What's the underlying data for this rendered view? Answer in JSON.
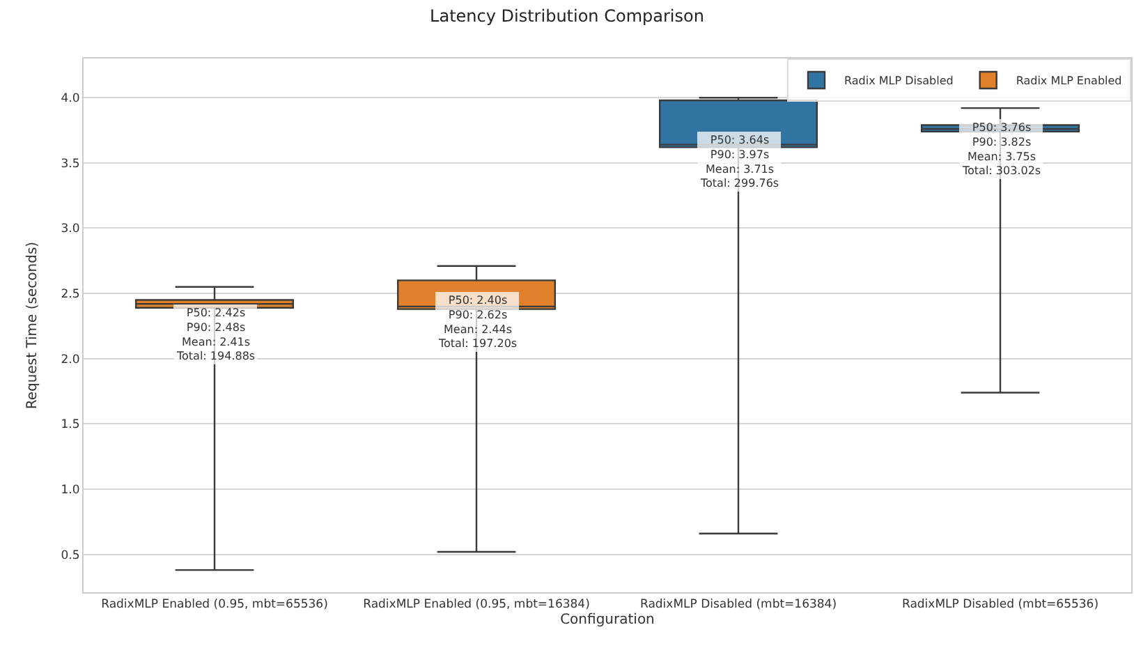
{
  "chart_data": {
    "type": "box",
    "title": "Latency Distribution Comparison",
    "xlabel": "Configuration",
    "ylabel": "Request Time (seconds)",
    "categories": [
      "RadixMLP Enabled (0.95, mbt=65536)",
      "RadixMLP Enabled (0.95, mbt=16384)",
      "RadixMLP Disabled (mbt=16384)",
      "RadixMLP Disabled (mbt=65536)"
    ],
    "series": [
      {
        "name": "Radix MLP Disabled",
        "color": "#3274a1",
        "boxes": [
          null,
          null,
          {
            "low": 0.66,
            "q1": 3.62,
            "median": 3.64,
            "q3": 3.98,
            "high": 4.0
          },
          {
            "low": 1.74,
            "q1": 3.74,
            "median": 3.76,
            "q3": 3.79,
            "high": 3.92
          }
        ]
      },
      {
        "name": "Radix MLP Enabled",
        "color": "#e1812c",
        "boxes": [
          {
            "low": 0.38,
            "q1": 2.39,
            "median": 2.42,
            "q3": 2.45,
            "high": 2.55
          },
          {
            "low": 0.52,
            "q1": 2.38,
            "median": 2.4,
            "q3": 2.6,
            "high": 2.71
          },
          null,
          null
        ]
      }
    ],
    "annotations": [
      {
        "text": "P50: 2.42s\nP90: 2.48s\nMean: 2.41s\nTotal: 194.88s",
        "x": "RadixMLP Enabled (0.95, mbt=65536)",
        "y": 2.19
      },
      {
        "text": "P50: 2.40s\nP90: 2.62s\nMean: 2.44s\nTotal: 197.20s",
        "x": "RadixMLP Enabled (0.95, mbt=16384)",
        "y": 2.28
      },
      {
        "text": "P50: 3.64s\nP90: 3.97s\nMean: 3.71s\nTotal: 299.76s",
        "x": "RadixMLP Disabled (mbt=16384)",
        "y": 3.51
      },
      {
        "text": "P50: 3.76s\nP90: 3.82s\nMean: 3.75s\nTotal: 303.02s",
        "x": "RadixMLP Disabled (mbt=65536)",
        "y": 3.61
      }
    ],
    "ylim": [
      0.21,
      4.3
    ],
    "yticks": [
      {
        "value": 0.5,
        "label": "0.5"
      },
      {
        "value": 1.0,
        "label": "1.0"
      },
      {
        "value": 1.5,
        "label": "1.5"
      },
      {
        "value": 2.0,
        "label": "2.0"
      },
      {
        "value": 2.5,
        "label": "2.5"
      },
      {
        "value": 3.0,
        "label": "3.0"
      },
      {
        "value": 3.5,
        "label": "3.5"
      },
      {
        "value": 4.0,
        "label": "4.0"
      }
    ],
    "grid": "y",
    "legend": "top right"
  }
}
